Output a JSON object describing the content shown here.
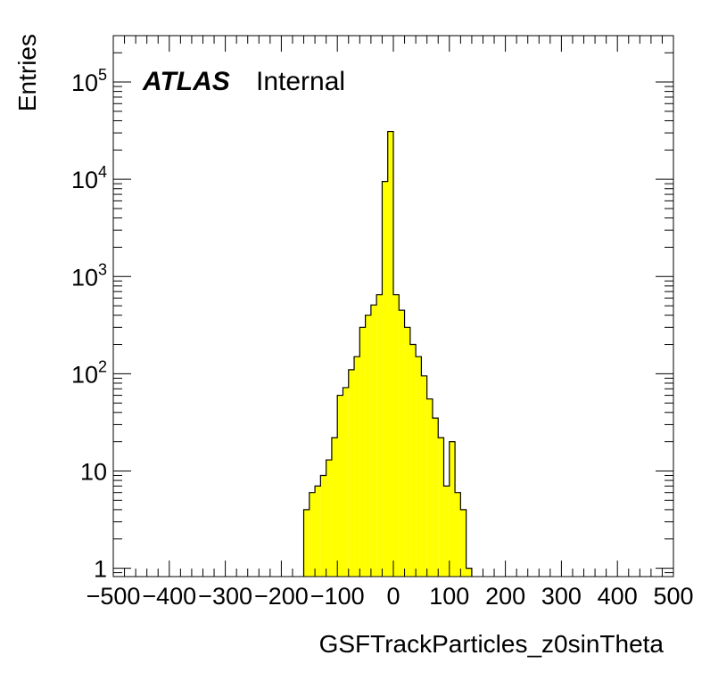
{
  "chart_data": {
    "type": "bar",
    "histogram": true,
    "xlabel": "GSFTrackParticles_z0sinTheta",
    "ylabel": "Entries",
    "label_bold": "ATLAS",
    "label_normal": "Internal",
    "xlim": [
      -500,
      500
    ],
    "ylog": true,
    "ylim": [
      0.82,
      300000
    ],
    "bin_width": 10,
    "x_ticks": [
      "−500",
      "−400",
      "−300",
      "−200",
      "−100",
      "0",
      "100",
      "200",
      "300",
      "400",
      "500"
    ],
    "y_ticks": [
      {
        "value": 1,
        "base": "1",
        "exp": ""
      },
      {
        "value": 10,
        "base": "10",
        "exp": ""
      },
      {
        "value": 100,
        "base": "10",
        "exp": "2"
      },
      {
        "value": 1000,
        "base": "10",
        "exp": "3"
      },
      {
        "value": 10000,
        "base": "10",
        "exp": "4"
      },
      {
        "value": 100000,
        "base": "10",
        "exp": "5"
      }
    ],
    "fill_color": "#ffff00",
    "line_color": "#000000",
    "bins": [
      {
        "x": -160,
        "y": 4
      },
      {
        "x": -150,
        "y": 6
      },
      {
        "x": -140,
        "y": 7
      },
      {
        "x": -130,
        "y": 9
      },
      {
        "x": -120,
        "y": 13
      },
      {
        "x": -110,
        "y": 22
      },
      {
        "x": -100,
        "y": 60
      },
      {
        "x": -90,
        "y": 72
      },
      {
        "x": -80,
        "y": 110
      },
      {
        "x": -70,
        "y": 150
      },
      {
        "x": -60,
        "y": 300
      },
      {
        "x": -50,
        "y": 400
      },
      {
        "x": -40,
        "y": 510
      },
      {
        "x": -30,
        "y": 650
      },
      {
        "x": -20,
        "y": 9500
      },
      {
        "x": -10,
        "y": 31000
      },
      {
        "x": 0,
        "y": 650
      },
      {
        "x": 10,
        "y": 450
      },
      {
        "x": 20,
        "y": 300
      },
      {
        "x": 30,
        "y": 200
      },
      {
        "x": 40,
        "y": 150
      },
      {
        "x": 50,
        "y": 95
      },
      {
        "x": 60,
        "y": 55
      },
      {
        "x": 70,
        "y": 35
      },
      {
        "x": 80,
        "y": 22
      },
      {
        "x": 90,
        "y": 7
      },
      {
        "x": 100,
        "y": 20
      },
      {
        "x": 110,
        "y": 6
      },
      {
        "x": 120,
        "y": 4
      },
      {
        "x": 130,
        "y": 1
      }
    ]
  }
}
